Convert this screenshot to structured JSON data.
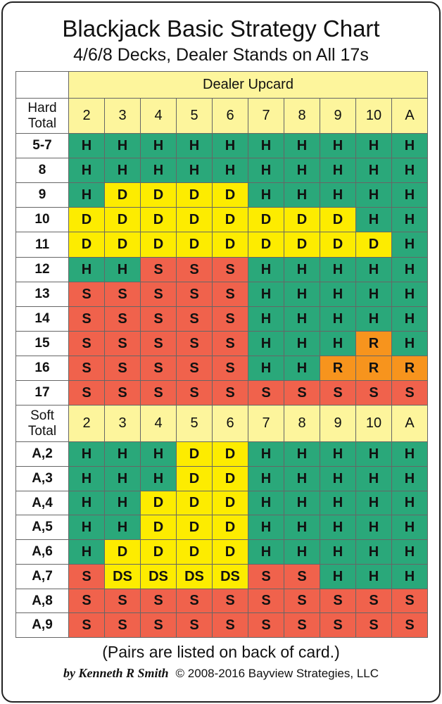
{
  "header": {
    "title": "Blackjack Basic Strategy Chart",
    "subtitle": "4/6/8 Decks, Dealer Stands on All 17s"
  },
  "table": {
    "dealer_label": "Dealer Upcard",
    "action_colors": {
      "H": "#2aa87a",
      "D": "#fdec00",
      "S": "#f0624c",
      "R": "#f7941d",
      "DS": "#fdec00"
    },
    "header_color": "#fdf59c",
    "sections": [
      {
        "label": "Hard Total",
        "upcards": [
          "2",
          "3",
          "4",
          "5",
          "6",
          "7",
          "8",
          "9",
          "10",
          "A"
        ],
        "rows": [
          {
            "label": "5-7",
            "cells": [
              "H",
              "H",
              "H",
              "H",
              "H",
              "H",
              "H",
              "H",
              "H",
              "H"
            ]
          },
          {
            "label": "8",
            "cells": [
              "H",
              "H",
              "H",
              "H",
              "H",
              "H",
              "H",
              "H",
              "H",
              "H"
            ]
          },
          {
            "label": "9",
            "cells": [
              "H",
              "D",
              "D",
              "D",
              "D",
              "H",
              "H",
              "H",
              "H",
              "H"
            ]
          },
          {
            "label": "10",
            "cells": [
              "D",
              "D",
              "D",
              "D",
              "D",
              "D",
              "D",
              "D",
              "H",
              "H"
            ]
          },
          {
            "label": "11",
            "cells": [
              "D",
              "D",
              "D",
              "D",
              "D",
              "D",
              "D",
              "D",
              "D",
              "H"
            ]
          },
          {
            "label": "12",
            "cells": [
              "H",
              "H",
              "S",
              "S",
              "S",
              "H",
              "H",
              "H",
              "H",
              "H"
            ]
          },
          {
            "label": "13",
            "cells": [
              "S",
              "S",
              "S",
              "S",
              "S",
              "H",
              "H",
              "H",
              "H",
              "H"
            ]
          },
          {
            "label": "14",
            "cells": [
              "S",
              "S",
              "S",
              "S",
              "S",
              "H",
              "H",
              "H",
              "H",
              "H"
            ]
          },
          {
            "label": "15",
            "cells": [
              "S",
              "S",
              "S",
              "S",
              "S",
              "H",
              "H",
              "H",
              "R",
              "H"
            ]
          },
          {
            "label": "16",
            "cells": [
              "S",
              "S",
              "S",
              "S",
              "S",
              "H",
              "H",
              "R",
              "R",
              "R"
            ]
          },
          {
            "label": "17",
            "cells": [
              "S",
              "S",
              "S",
              "S",
              "S",
              "S",
              "S",
              "S",
              "S",
              "S"
            ]
          }
        ]
      },
      {
        "label": "Soft Total",
        "upcards": [
          "2",
          "3",
          "4",
          "5",
          "6",
          "7",
          "8",
          "9",
          "10",
          "A"
        ],
        "rows": [
          {
            "label": "A,2",
            "cells": [
              "H",
              "H",
              "H",
              "D",
              "D",
              "H",
              "H",
              "H",
              "H",
              "H"
            ]
          },
          {
            "label": "A,3",
            "cells": [
              "H",
              "H",
              "H",
              "D",
              "D",
              "H",
              "H",
              "H",
              "H",
              "H"
            ]
          },
          {
            "label": "A,4",
            "cells": [
              "H",
              "H",
              "D",
              "D",
              "D",
              "H",
              "H",
              "H",
              "H",
              "H"
            ]
          },
          {
            "label": "A,5",
            "cells": [
              "H",
              "H",
              "D",
              "D",
              "D",
              "H",
              "H",
              "H",
              "H",
              "H"
            ]
          },
          {
            "label": "A,6",
            "cells": [
              "H",
              "D",
              "D",
              "D",
              "D",
              "H",
              "H",
              "H",
              "H",
              "H"
            ]
          },
          {
            "label": "A,7",
            "cells": [
              "S",
              "DS",
              "DS",
              "DS",
              "DS",
              "S",
              "S",
              "H",
              "H",
              "H"
            ]
          },
          {
            "label": "A,8",
            "cells": [
              "S",
              "S",
              "S",
              "S",
              "S",
              "S",
              "S",
              "S",
              "S",
              "S"
            ]
          },
          {
            "label": "A,9",
            "cells": [
              "S",
              "S",
              "S",
              "S",
              "S",
              "S",
              "S",
              "S",
              "S",
              "S"
            ]
          }
        ]
      }
    ]
  },
  "footer": {
    "note": "(Pairs are listed on back of card.)",
    "author": "by Kenneth R Smith",
    "copyright": "© 2008-2016 Bayview Strategies, LLC"
  }
}
